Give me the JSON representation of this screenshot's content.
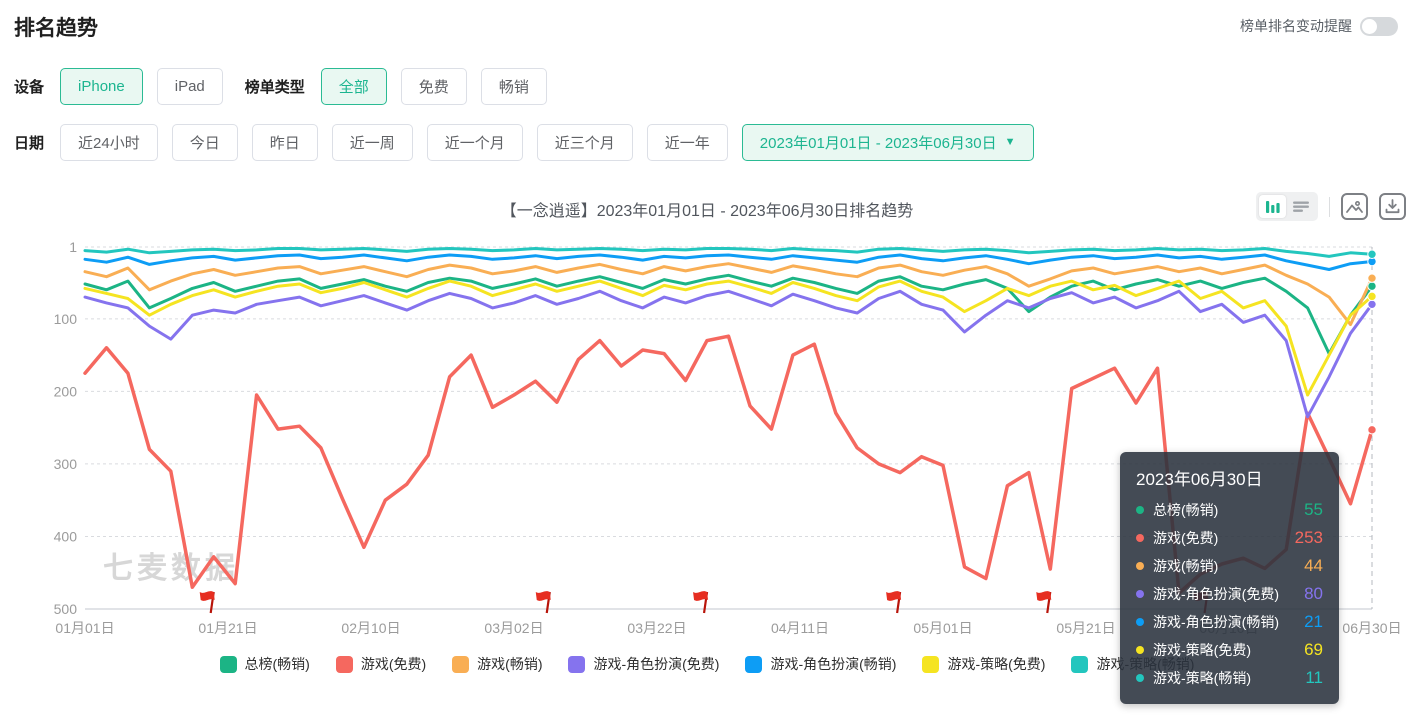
{
  "page": {
    "title": "排名趋势"
  },
  "notify": {
    "label": "榜单排名变动提醒",
    "enabled": false
  },
  "filters": {
    "device": {
      "label": "设备",
      "options": [
        {
          "label": "iPhone",
          "selected": true
        },
        {
          "label": "iPad",
          "selected": false
        }
      ]
    },
    "chart_type": {
      "label": "榜单类型",
      "options": [
        {
          "label": "全部",
          "selected": true
        },
        {
          "label": "免费",
          "selected": false
        },
        {
          "label": "畅销",
          "selected": false
        }
      ]
    },
    "date": {
      "label": "日期",
      "options": [
        {
          "label": "近24小时",
          "selected": false
        },
        {
          "label": "今日",
          "selected": false
        },
        {
          "label": "昨日",
          "selected": false
        },
        {
          "label": "近一周",
          "selected": false
        },
        {
          "label": "近一个月",
          "selected": false
        },
        {
          "label": "近三个月",
          "selected": false
        },
        {
          "label": "近一年",
          "selected": false
        }
      ],
      "range": "2023年01月01日 - 2023年06月30日"
    }
  },
  "chart_header": {
    "title": "【一念逍遥】2023年01月01日 - 2023年06月30日排名趋势"
  },
  "icons": {
    "chart_mode": "bar-chart-icon",
    "list_mode": "list-icon",
    "export_image": "image-icon",
    "download": "download-icon"
  },
  "watermark": "七麦数据",
  "tooltip": {
    "title": "2023年06月30日",
    "rows": [
      {
        "label": "总榜(畅销)",
        "value": 55,
        "color": "#1cb485"
      },
      {
        "label": "游戏(免费)",
        "value": 253,
        "color": "#f5685f"
      },
      {
        "label": "游戏(畅销)",
        "value": 44,
        "color": "#f9ae54"
      },
      {
        "label": "游戏-角色扮演(免费)",
        "value": 80,
        "color": "#8573ee"
      },
      {
        "label": "游戏-角色扮演(畅销)",
        "value": 21,
        "color": "#0d9df5"
      },
      {
        "label": "游戏-策略(免费)",
        "value": 69,
        "color": "#f5e421"
      },
      {
        "label": "游戏-策略(畅销)",
        "value": 11,
        "color": "#23c6be"
      }
    ]
  },
  "chart_data": {
    "type": "line",
    "title": "【一念逍遥】2023年01月01日 - 2023年06月30日排名趋势",
    "ylabel": "排名",
    "y_ticks": [
      1,
      100,
      200,
      300,
      400,
      500
    ],
    "y_inverted": true,
    "ylim": [
      1,
      500
    ],
    "x_ticks": [
      "01月01日",
      "01月21日",
      "02月10日",
      "03月02日",
      "03月22日",
      "04月11日",
      "05月01日",
      "05月21日",
      "06月10日",
      "06月30日"
    ],
    "x_tick_step_days": 20,
    "x_range_days": [
      0,
      180
    ],
    "x_start_day": 0,
    "x_step_days": 3,
    "grid": true,
    "legend_position": "bottom",
    "flag_days": [
      18,
      65,
      87,
      114,
      135,
      157
    ],
    "crosshair_day": 180,
    "series": [
      {
        "name": "总榜(畅销)",
        "color": "#1cb485",
        "end_value": 55,
        "values": [
          52,
          60,
          48,
          85,
          72,
          58,
          50,
          62,
          55,
          48,
          45,
          58,
          52,
          46,
          55,
          62,
          50,
          44,
          48,
          58,
          52,
          45,
          55,
          48,
          42,
          50,
          58,
          46,
          52,
          45,
          40,
          48,
          55,
          44,
          50,
          58,
          65,
          48,
          42,
          55,
          60,
          52,
          46,
          58,
          90,
          70,
          55,
          48,
          60,
          52,
          46,
          55,
          48,
          58,
          50,
          44,
          62,
          85,
          148,
          95,
          55
        ]
      },
      {
        "name": "游戏(免费)",
        "color": "#f5685f",
        "end_value": 253,
        "values": [
          175,
          140,
          175,
          280,
          310,
          470,
          428,
          465,
          205,
          252,
          248,
          278,
          348,
          415,
          350,
          328,
          288,
          180,
          150,
          222,
          205,
          186,
          215,
          156,
          130,
          165,
          143,
          148,
          185,
          130,
          124,
          220,
          252,
          150,
          135,
          230,
          278,
          300,
          312,
          290,
          302,
          442,
          458,
          330,
          312,
          445,
          196,
          182,
          168,
          216,
          168,
          478,
          452,
          438,
          430,
          444,
          418,
          230,
          292,
          355,
          253
        ]
      },
      {
        "name": "游戏(畅销)",
        "color": "#f9ae54",
        "end_value": 44,
        "values": [
          35,
          42,
          30,
          60,
          48,
          38,
          32,
          40,
          35,
          30,
          28,
          38,
          33,
          28,
          35,
          42,
          32,
          26,
          30,
          38,
          34,
          28,
          36,
          30,
          25,
          32,
          38,
          28,
          34,
          28,
          24,
          30,
          36,
          27,
          32,
          38,
          42,
          30,
          26,
          35,
          40,
          33,
          28,
          38,
          55,
          45,
          34,
          30,
          38,
          33,
          28,
          35,
          30,
          38,
          32,
          26,
          40,
          52,
          70,
          108,
          44
        ]
      },
      {
        "name": "游戏-角色扮演(免费)",
        "color": "#8573ee",
        "end_value": 80,
        "values": [
          70,
          78,
          85,
          110,
          128,
          95,
          88,
          92,
          80,
          75,
          70,
          82,
          75,
          68,
          78,
          88,
          75,
          65,
          72,
          85,
          78,
          68,
          80,
          72,
          62,
          75,
          85,
          70,
          78,
          68,
          62,
          72,
          82,
          66,
          75,
          85,
          92,
          72,
          62,
          80,
          88,
          118,
          95,
          75,
          85,
          72,
          64,
          78,
          70,
          85,
          75,
          62,
          90,
          80,
          105,
          95,
          130,
          235,
          180,
          120,
          80
        ]
      },
      {
        "name": "游戏-角色扮演(畅销)",
        "color": "#0d9df5",
        "end_value": 21,
        "values": [
          18,
          22,
          15,
          25,
          20,
          16,
          14,
          19,
          16,
          13,
          12,
          17,
          15,
          12,
          16,
          20,
          15,
          12,
          14,
          18,
          16,
          13,
          17,
          14,
          12,
          15,
          19,
          14,
          16,
          13,
          12,
          15,
          18,
          13,
          16,
          19,
          22,
          15,
          12,
          17,
          20,
          16,
          13,
          18,
          24,
          19,
          15,
          13,
          17,
          15,
          12,
          16,
          14,
          18,
          15,
          12,
          20,
          26,
          32,
          24,
          21
        ]
      },
      {
        "name": "游戏-策略(免费)",
        "color": "#f5e421",
        "end_value": 69,
        "values": [
          58,
          65,
          72,
          95,
          80,
          68,
          60,
          70,
          62,
          55,
          52,
          64,
          58,
          50,
          60,
          70,
          58,
          48,
          55,
          68,
          60,
          52,
          62,
          55,
          48,
          58,
          68,
          54,
          60,
          52,
          48,
          56,
          65,
          50,
          58,
          68,
          75,
          56,
          48,
          62,
          70,
          90,
          75,
          58,
          68,
          55,
          48,
          60,
          54,
          68,
          58,
          48,
          72,
          62,
          85,
          75,
          110,
          205,
          150,
          95,
          69
        ]
      },
      {
        "name": "游戏-策略(畅销)",
        "color": "#23c6be",
        "end_value": 11,
        "values": [
          6,
          8,
          4,
          9,
          7,
          5,
          4,
          6,
          5,
          3,
          3,
          5,
          4,
          3,
          5,
          7,
          4,
          3,
          4,
          6,
          5,
          3,
          5,
          4,
          3,
          4,
          6,
          4,
          5,
          3,
          3,
          4,
          6,
          3,
          5,
          6,
          8,
          4,
          3,
          5,
          7,
          5,
          4,
          6,
          9,
          7,
          5,
          4,
          6,
          5,
          3,
          5,
          4,
          6,
          5,
          3,
          7,
          10,
          14,
          9,
          11
        ]
      }
    ]
  }
}
